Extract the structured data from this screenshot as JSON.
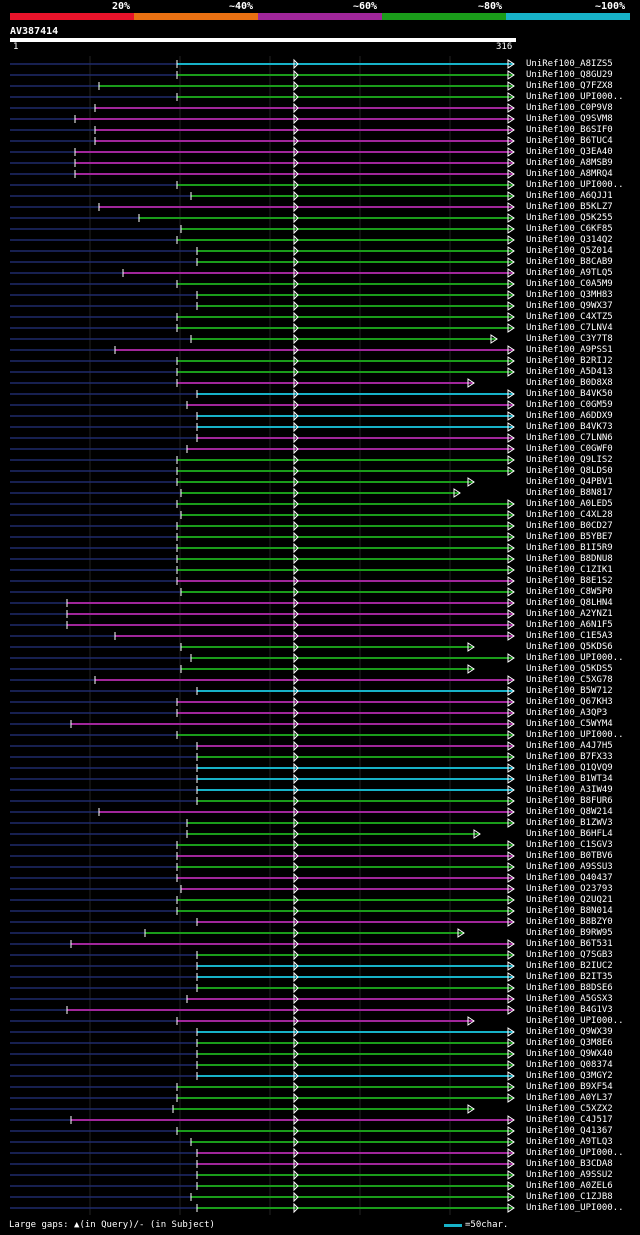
{
  "legend": {
    "labels": [
      "20%",
      "~40%",
      "~60%",
      "~80%",
      "~100%"
    ],
    "colors": [
      "#e8132a",
      "#e87012",
      "#a0269a",
      "#1a9c1a",
      "#17b2c8"
    ]
  },
  "query": {
    "name": "AV387414",
    "start": "1",
    "end": "316"
  },
  "footer": {
    "large_gaps": "Large gaps: ▲(in Query)/- (in Subject)",
    "scale": "=50char."
  },
  "hits": [
    "UniRef100_A8IZS5",
    "UniRef100_Q8GU29",
    "UniRef100_Q7FZX8",
    "UniRef100_UPI000..",
    "UniRef100_C0P9V8",
    "UniRef100_Q9SVM8",
    "UniRef100_B6SIF0",
    "UniRef100_B6TUC4",
    "UniRef100_Q3EA40",
    "UniRef100_A8MSB9",
    "UniRef100_A8MRQ4",
    "UniRef100_UPI000..",
    "UniRef100_A6QJJ1",
    "UniRef100_B5KLZ7",
    "UniRef100_Q5K255",
    "UniRef100_C6KF85",
    "UniRef100_Q314Q2",
    "UniRef100_Q5Z014",
    "UniRef100_B8CAB9",
    "UniRef100_A9TLQ5",
    "UniRef100_C0A5M9",
    "UniRef100_Q3MH83",
    "UniRef100_Q9WX37",
    "UniRef100_C4XTZ5",
    "UniRef100_C7LNV4",
    "UniRef100_C3Y7T8",
    "UniRef100_A9PSS1",
    "UniRef100_B2RIJ2",
    "UniRef100_A5D413",
    "UniRef100_B0D8X8",
    "UniRef100_B4VK50",
    "UniRef100_C0GM59",
    "UniRef100_A6DDX9",
    "UniRef100_B4VK73",
    "UniRef100_C7LNN6",
    "UniRef100_C0GWF0",
    "UniRef100_Q9LIS2",
    "UniRef100_Q8LDS0",
    "UniRef100_Q4PBV1",
    "UniRef100_B8N817",
    "UniRef100_A0LED5",
    "UniRef100_C4XL28",
    "UniRef100_B0CD27",
    "UniRef100_B5YBE7",
    "UniRef100_B1I5R9",
    "UniRef100_B8DNU8",
    "UniRef100_C1ZIK1",
    "UniRef100_B8E1S2",
    "UniRef100_C8W5P0",
    "UniRef100_Q8LHN4",
    "UniRef100_A2YNZ1",
    "UniRef100_A6N1F5",
    "UniRef100_C1E5A3",
    "UniRef100_Q5KDS6",
    "UniRef100_UPI000..",
    "UniRef100_Q5KDS5",
    "UniRef100_C5XG78",
    "UniRef100_B5W712",
    "UniRef100_Q67KH3",
    "UniRef100_A3QP3",
    "UniRef100_C5WYM4",
    "UniRef100_UPI000..",
    "UniRef100_A4J7H5",
    "UniRef100_B7FX33",
    "UniRef100_Q1QVQ9",
    "UniRef100_B1WT34",
    "UniRef100_A3IW49",
    "UniRef100_B8FUR6",
    "UniRef100_Q8W214",
    "UniRef100_B1ZWV3",
    "UniRef100_B6HFL4",
    "UniRef100_C1SGV3",
    "UniRef100_B0TBV6",
    "UniRef100_A9SSU3",
    "UniRef100_Q40437",
    "UniRef100_O23793",
    "UniRef100_Q2UQ21",
    "UniRef100_B8N014",
    "UniRef100_B8BZY0",
    "UniRef100_B9RW95",
    "UniRef100_B6T531",
    "UniRef100_Q7SGB3",
    "UniRef100_B2IUC2",
    "UniRef100_B2IT35",
    "UniRef100_B8DSE6",
    "UniRef100_A5GSX3",
    "UniRef100_B4G1V3",
    "UniRef100_UPI000..",
    "UniRef100_Q9WX39",
    "UniRef100_Q3M8E6",
    "UniRef100_Q9WX40",
    "UniRef100_Q08374",
    "UniRef100_Q3MGY2",
    "UniRef100_B9XF54",
    "UniRef100_A0YL37",
    "UniRef100_C5XZX2",
    "UniRef100_C4J517",
    "UniRef100_Q41367",
    "UniRef100_A9TLQ3",
    "UniRef100_UPI000..",
    "UniRef100_B3CDA8",
    "UniRef100_A9SSU2",
    "UniRef100_A0ZEL6",
    "UniRef100_C1ZJB8",
    "UniRef100_UPI000.."
  ]
}
